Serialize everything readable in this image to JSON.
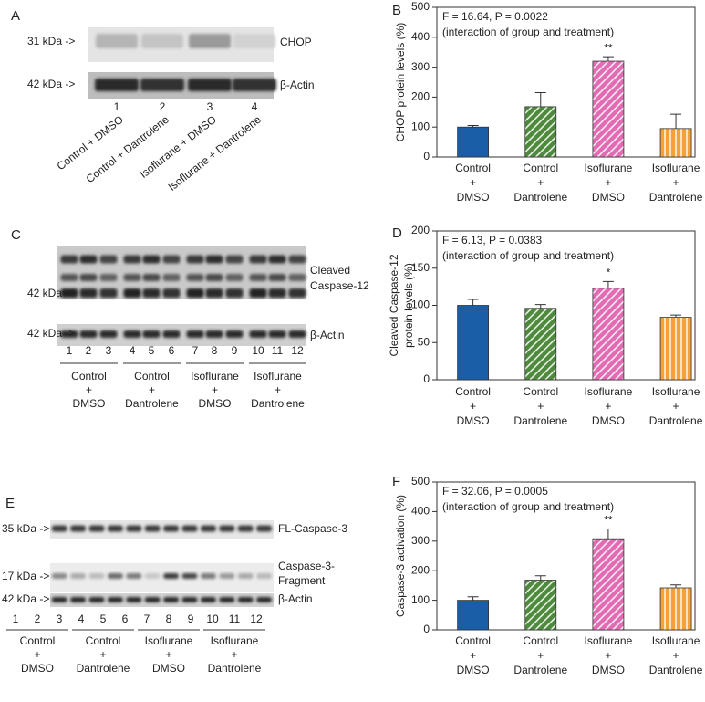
{
  "panel_letters": [
    "A",
    "B",
    "C",
    "D",
    "E",
    "F"
  ],
  "groups": [
    [
      "Control",
      "+",
      "DMSO"
    ],
    [
      "Control",
      "+",
      "Dantrolene"
    ],
    [
      "Isoflurane",
      "+",
      "DMSO"
    ],
    [
      "Isoflurane",
      "+",
      "Dantrolene"
    ]
  ],
  "blot_a": {
    "markers": [
      "31 kDa ->",
      "42 kDa ->"
    ],
    "bands": [
      [
        "CHOP"
      ],
      [
        "β-Actin"
      ]
    ],
    "lanes": [
      1,
      2,
      3,
      4
    ],
    "lane_labels": [
      "Control + DMSO",
      "Control + Dantrolene",
      "Isoflurane + DMSO",
      "Isoflurane + Dantrolene"
    ]
  },
  "blot_c": {
    "markers": [
      "42 kDa ->",
      "42 kDa ->"
    ],
    "bands": [
      [
        "Cleaved",
        "Caspase-12"
      ],
      [
        "β-Actin"
      ]
    ],
    "lanes": [
      1,
      2,
      3,
      4,
      5,
      6,
      7,
      8,
      9,
      10,
      11,
      12
    ]
  },
  "blot_e": {
    "markers": [
      "35 kDa ->",
      "17 kDa ->",
      "42 kDa ->"
    ],
    "bands": [
      [
        "FL-Caspase-3"
      ],
      [
        "Caspase-3-",
        "Fragment"
      ],
      [
        "β-Actin"
      ]
    ],
    "lanes": [
      1,
      2,
      3,
      4,
      5,
      6,
      7,
      8,
      9,
      10,
      11,
      12
    ]
  },
  "chart_data": [
    {
      "type": "bar",
      "annotation": [
        "F = 16.64, P = 0.0022",
        "(interaction of group and treatment)"
      ],
      "y_label": [
        "CHOP protein levels (%)"
      ],
      "values": [
        100,
        168,
        320,
        95
      ],
      "errors": [
        5,
        47,
        15,
        48
      ],
      "significance": [
        null,
        null,
        "**",
        null
      ],
      "colors": [
        "#1a5ea8",
        "#4d8a3c",
        "#e26bb4",
        "#f4a13a"
      ],
      "patterns": [
        "solid",
        "diagonal",
        "diagonal",
        "vertical"
      ],
      "ylim": [
        0,
        500
      ],
      "yticks": [
        0,
        100,
        200,
        300,
        400,
        500
      ]
    },
    {
      "type": "bar",
      "annotation": [
        "F = 6.13, P = 0.0383",
        "(interaction of group and treatment)"
      ],
      "y_label": [
        "Cleaved Caspase-12",
        "protein levels (%)"
      ],
      "values": [
        100,
        96,
        123,
        84
      ],
      "errors": [
        8,
        5,
        9,
        3
      ],
      "significance": [
        null,
        null,
        "*",
        null
      ],
      "colors": [
        "#1a5ea8",
        "#4d8a3c",
        "#e26bb4",
        "#f4a13a"
      ],
      "patterns": [
        "solid",
        "diagonal",
        "diagonal",
        "vertical"
      ],
      "ylim": [
        0,
        200
      ],
      "yticks": [
        0,
        50,
        100,
        150,
        200
      ]
    },
    {
      "type": "bar",
      "annotation": [
        "F = 32.06, P = 0.0005",
        "(interaction of group and treatment)"
      ],
      "y_label": [
        "Caspase-3 activation (%)"
      ],
      "values": [
        100,
        168,
        308,
        142
      ],
      "errors": [
        12,
        15,
        33,
        10
      ],
      "significance": [
        null,
        null,
        "**",
        null
      ],
      "colors": [
        "#1a5ea8",
        "#4d8a3c",
        "#e26bb4",
        "#f4a13a"
      ],
      "patterns": [
        "solid",
        "diagonal",
        "diagonal",
        "vertical"
      ],
      "ylim": [
        0,
        500
      ],
      "yticks": [
        0,
        100,
        200,
        300,
        400,
        500
      ]
    }
  ]
}
